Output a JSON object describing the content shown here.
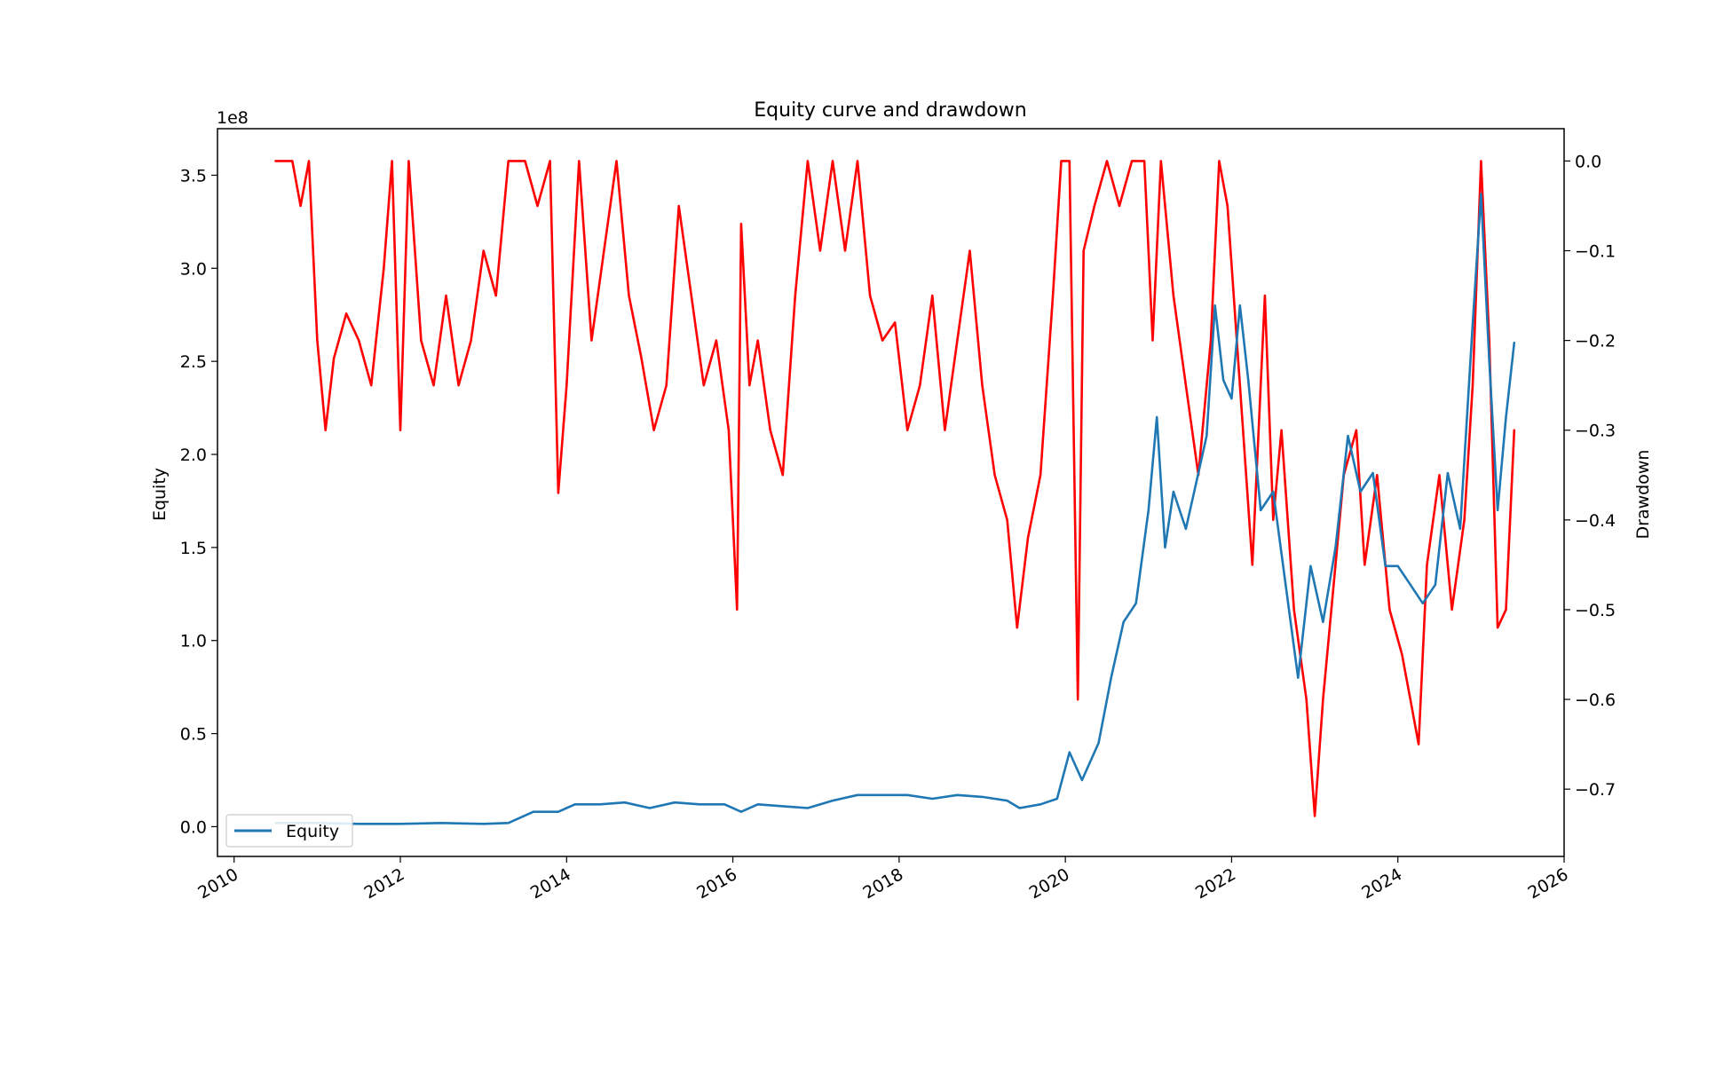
{
  "chart_data": {
    "type": "line",
    "title": "Equity curve and drawdown",
    "axes": {
      "x": {
        "label": "",
        "range": [
          2009.8,
          2026.0
        ],
        "ticks": [
          2010,
          2012,
          2014,
          2016,
          2018,
          2020,
          2022,
          2024,
          2026
        ],
        "tick_labels": [
          "2010",
          "2012",
          "2014",
          "2016",
          "2018",
          "2020",
          "2022",
          "2024",
          "2026"
        ]
      },
      "y_left": {
        "label": "Equity",
        "offset_label": "1e8",
        "range": [
          -0.16,
          3.75
        ],
        "ticks": [
          0.0,
          0.5,
          1.0,
          1.5,
          2.0,
          2.5,
          3.0,
          3.5
        ],
        "tick_labels": [
          "0.0",
          "0.5",
          "1.0",
          "1.5",
          "2.0",
          "2.5",
          "3.0",
          "3.5"
        ]
      },
      "y_right": {
        "label": "Drawdown",
        "range": [
          -0.775,
          0.036
        ],
        "ticks": [
          0.0,
          -0.1,
          -0.2,
          -0.3,
          -0.4,
          -0.5,
          -0.6,
          -0.7
        ],
        "tick_labels": [
          "0.0",
          "−0.1",
          "−0.2",
          "−0.3",
          "−0.4",
          "−0.5",
          "−0.6",
          "−0.7"
        ]
      }
    },
    "legend": {
      "placement": "lower-left",
      "entries": [
        "Equity"
      ]
    },
    "grid": false,
    "series": [
      {
        "name": "Equity",
        "axis": "left",
        "color": "#1f77b4",
        "x": [
          2010.5,
          2011.0,
          2011.5,
          2012.0,
          2012.5,
          2013.0,
          2013.3,
          2013.6,
          2013.9,
          2014.1,
          2014.4,
          2014.7,
          2015.0,
          2015.3,
          2015.6,
          2015.9,
          2016.1,
          2016.3,
          2016.6,
          2016.9,
          2017.2,
          2017.5,
          2017.8,
          2018.1,
          2018.4,
          2018.7,
          2019.0,
          2019.3,
          2019.45,
          2019.7,
          2019.9,
          2020.05,
          2020.2,
          2020.4,
          2020.55,
          2020.7,
          2020.85,
          2021.0,
          2021.1,
          2021.2,
          2021.3,
          2021.45,
          2021.6,
          2021.7,
          2021.8,
          2021.9,
          2022.0,
          2022.1,
          2022.2,
          2022.35,
          2022.5,
          2022.65,
          2022.8,
          2022.95,
          2023.1,
          2023.25,
          2023.4,
          2023.55,
          2023.7,
          2023.85,
          2024.0,
          2024.15,
          2024.3,
          2024.45,
          2024.6,
          2024.75,
          2024.9,
          2025.0,
          2025.1,
          2025.2,
          2025.3,
          2025.4
        ],
        "y": [
          0.02,
          0.02,
          0.015,
          0.015,
          0.02,
          0.015,
          0.02,
          0.08,
          0.08,
          0.12,
          0.12,
          0.13,
          0.1,
          0.13,
          0.12,
          0.12,
          0.08,
          0.12,
          0.11,
          0.1,
          0.14,
          0.17,
          0.17,
          0.17,
          0.15,
          0.17,
          0.16,
          0.14,
          0.1,
          0.12,
          0.15,
          0.4,
          0.25,
          0.45,
          0.8,
          1.1,
          1.2,
          1.7,
          2.2,
          1.5,
          1.8,
          1.6,
          1.9,
          2.1,
          2.8,
          2.4,
          2.3,
          2.8,
          2.4,
          1.7,
          1.8,
          1.3,
          0.8,
          1.4,
          1.1,
          1.5,
          2.1,
          1.8,
          1.9,
          1.4,
          1.4,
          1.3,
          1.2,
          1.3,
          1.9,
          1.6,
          2.7,
          3.4,
          2.5,
          1.7,
          2.2,
          2.6
        ]
      },
      {
        "name": "Drawdown",
        "axis": "right",
        "color": "#ff0000",
        "x": [
          2010.5,
          2010.7,
          2010.8,
          2010.9,
          2011.0,
          2011.1,
          2011.2,
          2011.35,
          2011.5,
          2011.65,
          2011.8,
          2011.9,
          2012.0,
          2012.1,
          2012.25,
          2012.4,
          2012.55,
          2012.7,
          2012.85,
          2013.0,
          2013.15,
          2013.3,
          2013.5,
          2013.65,
          2013.8,
          2013.9,
          2014.0,
          2014.15,
          2014.3,
          2014.45,
          2014.6,
          2014.75,
          2014.9,
          2015.05,
          2015.2,
          2015.35,
          2015.5,
          2015.65,
          2015.8,
          2015.95,
          2016.05,
          2016.1,
          2016.2,
          2016.3,
          2016.45,
          2016.6,
          2016.75,
          2016.9,
          2017.05,
          2017.2,
          2017.35,
          2017.5,
          2017.65,
          2017.8,
          2017.95,
          2018.1,
          2018.25,
          2018.4,
          2018.55,
          2018.7,
          2018.85,
          2019.0,
          2019.15,
          2019.3,
          2019.42,
          2019.55,
          2019.7,
          2019.85,
          2019.95,
          2020.05,
          2020.15,
          2020.22,
          2020.35,
          2020.5,
          2020.65,
          2020.8,
          2020.95,
          2021.05,
          2021.15,
          2021.3,
          2021.45,
          2021.6,
          2021.75,
          2021.85,
          2021.95,
          2022.1,
          2022.25,
          2022.4,
          2022.5,
          2022.6,
          2022.75,
          2022.9,
          2023.0,
          2023.1,
          2023.2,
          2023.35,
          2023.5,
          2023.6,
          2023.75,
          2023.9,
          2024.05,
          2024.15,
          2024.25,
          2024.35,
          2024.5,
          2024.65,
          2024.8,
          2024.9,
          2025.0,
          2025.1,
          2025.2,
          2025.3,
          2025.4
        ],
        "y": [
          0.0,
          0.0,
          -0.05,
          0.0,
          -0.2,
          -0.3,
          -0.22,
          -0.17,
          -0.2,
          -0.25,
          -0.12,
          0.0,
          -0.3,
          0.0,
          -0.2,
          -0.25,
          -0.15,
          -0.25,
          -0.2,
          -0.1,
          -0.15,
          0.0,
          0.0,
          -0.05,
          0.0,
          -0.37,
          -0.25,
          0.0,
          -0.2,
          -0.1,
          0.0,
          -0.15,
          -0.22,
          -0.3,
          -0.25,
          -0.05,
          -0.15,
          -0.25,
          -0.2,
          -0.3,
          -0.5,
          -0.07,
          -0.25,
          -0.2,
          -0.3,
          -0.35,
          -0.15,
          0.0,
          -0.1,
          0.0,
          -0.1,
          0.0,
          -0.15,
          -0.2,
          -0.18,
          -0.3,
          -0.25,
          -0.15,
          -0.3,
          -0.2,
          -0.1,
          -0.25,
          -0.35,
          -0.4,
          -0.52,
          -0.42,
          -0.35,
          -0.15,
          0.0,
          0.0,
          -0.6,
          -0.1,
          -0.05,
          0.0,
          -0.05,
          0.0,
          0.0,
          -0.2,
          0.0,
          -0.15,
          -0.25,
          -0.35,
          -0.2,
          0.0,
          -0.05,
          -0.25,
          -0.45,
          -0.15,
          -0.4,
          -0.3,
          -0.5,
          -0.6,
          -0.73,
          -0.6,
          -0.5,
          -0.35,
          -0.3,
          -0.45,
          -0.35,
          -0.5,
          -0.55,
          -0.6,
          -0.65,
          -0.45,
          -0.35,
          -0.5,
          -0.4,
          -0.25,
          0.0,
          -0.2,
          -0.52,
          -0.5,
          -0.3
        ]
      }
    ]
  }
}
